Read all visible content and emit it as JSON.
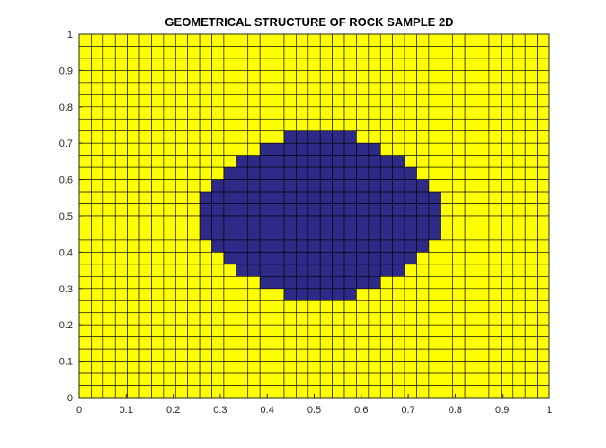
{
  "chart_data": {
    "type": "heatmap",
    "title": "GEOMETRICAL STRUCTURE OF ROCK SAMPLE 2D",
    "xlabel": "",
    "ylabel": "",
    "xlim": [
      0,
      1
    ],
    "ylim": [
      0,
      1
    ],
    "x_ticks": [
      "0",
      "0.1",
      "0.2",
      "0.3",
      "0.4",
      "0.5",
      "0.6",
      "0.7",
      "0.8",
      "0.9",
      "1"
    ],
    "y_ticks": [
      "0",
      "0.1",
      "0.2",
      "0.3",
      "0.4",
      "0.5",
      "0.6",
      "0.7",
      "0.8",
      "0.9",
      "1"
    ],
    "grid_cols": 39,
    "grid_rows": 30,
    "cell_edges_visible": true,
    "colors": {
      "matrix": "#ffff00",
      "inclusion": "#2e2a87",
      "cell_edge": "#000000",
      "axis": "#262626"
    },
    "inclusion_runs_top_to_bottom": [
      {
        "row": 8,
        "col_start": 17,
        "col_end": 22
      },
      {
        "row": 9,
        "col_start": 15,
        "col_end": 24
      },
      {
        "row": 10,
        "col_start": 13,
        "col_end": 26
      },
      {
        "row": 11,
        "col_start": 12,
        "col_end": 27
      },
      {
        "row": 12,
        "col_start": 11,
        "col_end": 28
      },
      {
        "row": 13,
        "col_start": 10,
        "col_end": 29
      },
      {
        "row": 14,
        "col_start": 10,
        "col_end": 29
      },
      {
        "row": 15,
        "col_start": 10,
        "col_end": 29
      },
      {
        "row": 16,
        "col_start": 10,
        "col_end": 29
      },
      {
        "row": 17,
        "col_start": 11,
        "col_end": 28
      },
      {
        "row": 18,
        "col_start": 12,
        "col_end": 27
      },
      {
        "row": 19,
        "col_start": 13,
        "col_end": 26
      },
      {
        "row": 20,
        "col_start": 15,
        "col_end": 24
      },
      {
        "row": 21,
        "col_start": 17,
        "col_end": 22
      }
    ]
  }
}
